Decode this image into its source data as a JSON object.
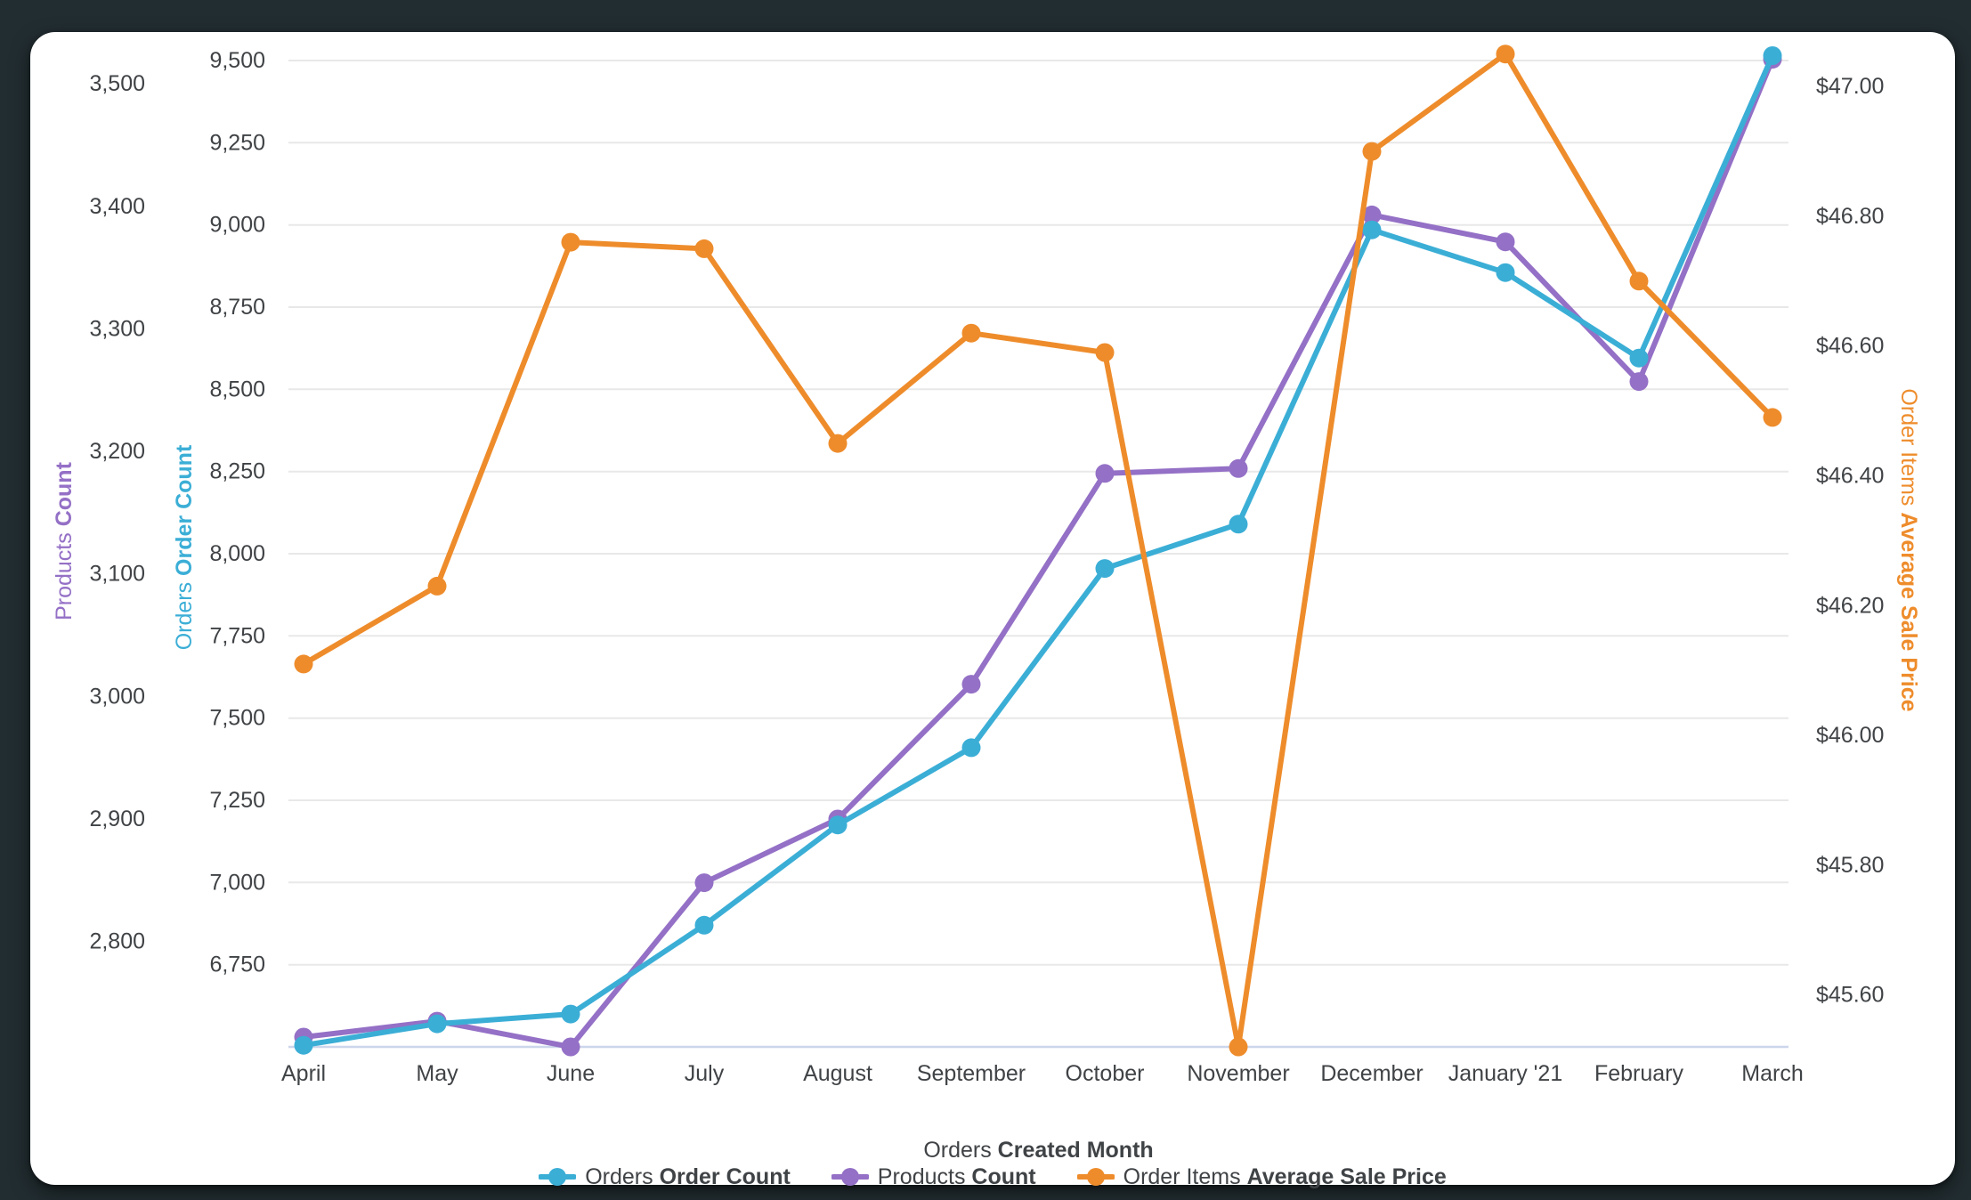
{
  "frame": {
    "page_background": "#222D31",
    "card_background": "#FFFFFF",
    "text_color": "#404346",
    "gridline_color": "#E8E8E8",
    "baseline_color": "#CCD6EB"
  },
  "chart_data": {
    "type": "line",
    "title": "",
    "categories": [
      "April",
      "May",
      "June",
      "July",
      "August",
      "September",
      "October",
      "November",
      "December",
      "January '21",
      "February",
      "March"
    ],
    "x_axis": {
      "title_prefix": "Orders",
      "title_bold": "Created Month"
    },
    "y_axes": [
      {
        "id": "products",
        "side": "left-outer",
        "title_prefix": "Products",
        "title_bold": "Count",
        "color": "#9470C6",
        "min": 2714,
        "max": 3519,
        "grid": false,
        "ticks": [
          {
            "v": 2800,
            "label": "2,800"
          },
          {
            "v": 2900,
            "label": "2,900"
          },
          {
            "v": 3000,
            "label": "3,000"
          },
          {
            "v": 3100,
            "label": "3,100"
          },
          {
            "v": 3200,
            "label": "3,200"
          },
          {
            "v": 3300,
            "label": "3,300"
          },
          {
            "v": 3400,
            "label": "3,400"
          },
          {
            "v": 3500,
            "label": "3,500"
          }
        ]
      },
      {
        "id": "orders",
        "side": "left-inner",
        "title_prefix": "Orders",
        "title_bold": "Order Count",
        "color": "#3BAED6",
        "min": 6500,
        "max": 9500,
        "grid": true,
        "ticks": [
          {
            "v": 6750,
            "label": "6,750"
          },
          {
            "v": 7000,
            "label": "7,000"
          },
          {
            "v": 7250,
            "label": "7,250"
          },
          {
            "v": 7500,
            "label": "7,500"
          },
          {
            "v": 7750,
            "label": "7,750"
          },
          {
            "v": 8000,
            "label": "8,000"
          },
          {
            "v": 8250,
            "label": "8,250"
          },
          {
            "v": 8500,
            "label": "8,500"
          },
          {
            "v": 8750,
            "label": "8,750"
          },
          {
            "v": 9000,
            "label": "9,000"
          },
          {
            "v": 9250,
            "label": "9,250"
          },
          {
            "v": 9500,
            "label": "9,500"
          }
        ]
      },
      {
        "id": "price",
        "side": "right",
        "title_prefix": "Order Items",
        "title_bold": "Average Sale Price",
        "color": "#EE8C2B",
        "min": 45.52,
        "max": 47.04,
        "grid": false,
        "ticks": [
          {
            "v": 45.6,
            "label": "$45.60"
          },
          {
            "v": 45.8,
            "label": "$45.80"
          },
          {
            "v": 46.0,
            "label": "$46.00"
          },
          {
            "v": 46.2,
            "label": "$46.20"
          },
          {
            "v": 46.4,
            "label": "$46.40"
          },
          {
            "v": 46.6,
            "label": "$46.60"
          },
          {
            "v": 46.8,
            "label": "$46.80"
          },
          {
            "v": 47.0,
            "label": "$47.00"
          }
        ]
      }
    ],
    "series": [
      {
        "id": "orders",
        "axis": "orders",
        "legend_prefix": "Orders",
        "legend_bold": "Order Count",
        "color": "#3BAED6",
        "values": [
          6505,
          6570,
          6600,
          6870,
          7175,
          7410,
          7955,
          8090,
          8985,
          8855,
          8595,
          9515
        ]
      },
      {
        "id": "products",
        "axis": "products",
        "legend_prefix": "Products",
        "legend_bold": "Count",
        "color": "#9470C6",
        "values": [
          2722,
          2735,
          2714,
          2848,
          2900,
          3010,
          3182,
          3186,
          3393,
          3371,
          3257,
          3520
        ]
      },
      {
        "id": "price",
        "axis": "price",
        "legend_prefix": "Order Items",
        "legend_bold": "Average Sale Price",
        "color": "#EE8C2B",
        "values": [
          46.11,
          46.23,
          46.76,
          46.75,
          46.45,
          46.62,
          46.59,
          45.52,
          46.9,
          47.05,
          46.7,
          46.49
        ]
      }
    ],
    "legend_position": "bottom",
    "draw_order": [
      "products",
      "orders",
      "price"
    ]
  }
}
